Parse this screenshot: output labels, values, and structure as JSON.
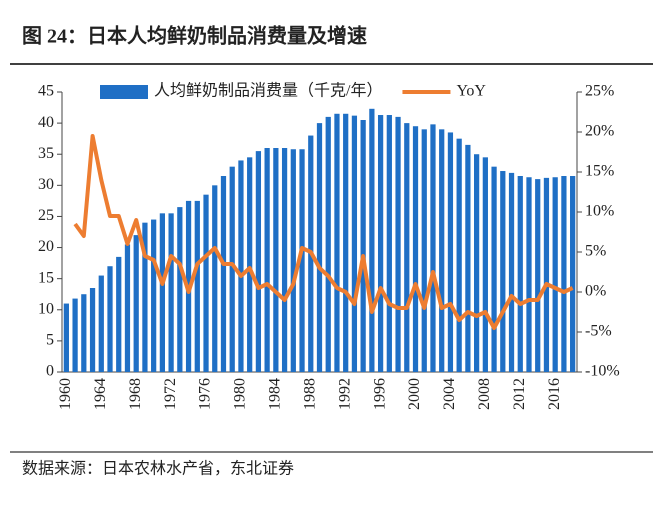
{
  "chart_data": {
    "type": "bar-line",
    "title": "图 24：日本人均鲜奶制品消费量及增速",
    "source": "数据来源：日本农林水产省，东北证券",
    "categories": [
      "1960",
      null,
      null,
      null,
      "1964",
      null,
      null,
      null,
      "1968",
      null,
      null,
      null,
      "1972",
      null,
      null,
      null,
      "1976",
      null,
      null,
      null,
      "1980",
      null,
      null,
      null,
      "1984",
      null,
      null,
      null,
      "1988",
      null,
      null,
      null,
      "1992",
      null,
      null,
      null,
      "1996",
      null,
      null,
      null,
      "2000",
      null,
      null,
      null,
      "2004",
      null,
      null,
      null,
      "2008",
      null,
      null,
      null,
      "2012",
      null,
      null,
      null,
      "2016",
      null,
      null
    ],
    "series": [
      {
        "name": "人均鲜奶制品消费量（千克/年）",
        "type": "bar",
        "color": "#1f6fc5",
        "values": [
          11,
          11.8,
          12.5,
          13.5,
          15.5,
          17,
          18.5,
          20.5,
          22,
          24,
          24.5,
          25.5,
          25.5,
          26.5,
          27.5,
          27.5,
          28.5,
          30,
          31.5,
          33,
          34,
          34.5,
          35.5,
          36,
          36,
          36,
          35.8,
          35.8,
          38,
          40,
          41,
          41.5,
          41.5,
          41.2,
          40.5,
          42.3,
          41.3,
          41.3,
          41,
          40,
          39.5,
          39,
          39.8,
          39,
          38.5,
          37.5,
          36.5,
          35,
          34.5,
          33,
          32.3,
          32,
          31.5,
          31.3,
          31,
          31.2,
          31.3,
          31.5,
          31.5
        ]
      },
      {
        "name": "YoY",
        "type": "line",
        "axis": "y2",
        "color": "#ed7d31",
        "values": [
          null,
          8.5,
          7,
          19.5,
          14,
          9.5,
          9.5,
          6,
          9,
          4.5,
          4,
          1,
          4.5,
          3.5,
          0,
          3.5,
          4.5,
          5.5,
          3.5,
          3.5,
          2,
          3,
          0.5,
          1,
          0,
          -1,
          1,
          5.5,
          5,
          3,
          2,
          0.5,
          0,
          -1.5,
          4.5,
          -2.5,
          0.5,
          -1.5,
          -2,
          -2,
          1,
          -2,
          2.5,
          -2,
          -1.5,
          -3.5,
          -2.5,
          -3,
          -2.5,
          -4.5,
          -2.5,
          -0.5,
          -1.5,
          -1,
          -1,
          1,
          0.5,
          0,
          0.5
        ]
      }
    ],
    "ylim": [
      0,
      45
    ],
    "yticks": [
      0,
      5,
      10,
      15,
      20,
      25,
      30,
      35,
      40,
      45
    ],
    "y2lim": [
      -10,
      25
    ],
    "y2ticks": [
      {
        "value": -10,
        "label": "-10%"
      },
      {
        "value": -5,
        "label": "-5%"
      },
      {
        "value": 0,
        "label": "0%"
      },
      {
        "value": 5,
        "label": "5%"
      },
      {
        "value": 10,
        "label": "10%"
      },
      {
        "value": 15,
        "label": "15%"
      },
      {
        "value": 20,
        "label": "20%"
      },
      {
        "value": 25,
        "label": "25%"
      }
    ],
    "legend": "top"
  }
}
